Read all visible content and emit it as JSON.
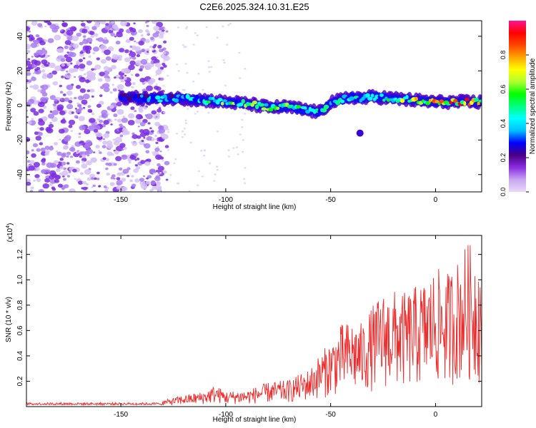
{
  "title": "C2E6.2025.324.10.31.E25",
  "chart_data": [
    {
      "type": "heatmap",
      "xlabel": "Height of straight line (km)",
      "ylabel": "Frequency (Hz)",
      "xlim": [
        -195,
        22
      ],
      "ylim": [
        -50,
        49
      ],
      "xticks": [
        -150,
        -100,
        -50,
        0
      ],
      "yticks": [
        -40,
        -20,
        0,
        20,
        40
      ],
      "colorbar": {
        "label": "Normalized spectral amplitude",
        "range": [
          0.0,
          1.0
        ],
        "ticks": [
          0.0,
          0.2,
          0.4,
          0.6,
          0.8
        ],
        "colors": [
          "#e8d8f8",
          "#c8a8f0",
          "#8a2be2",
          "#4b0082",
          "#0000ff",
          "#00bfff",
          "#00ffff",
          "#00ff7f",
          "#00ff00",
          "#adff2f",
          "#ffff00",
          "#ffa500",
          "#ff4500",
          "#ff0000",
          "#ff1493"
        ]
      },
      "ridge": {
        "x": [
          -150,
          -140,
          -130,
          -120,
          -110,
          -100,
          -90,
          -80,
          -70,
          -60,
          -55,
          -50,
          -45,
          -40,
          -35,
          -30,
          -20,
          -10,
          0,
          10,
          20
        ],
        "frequency": [
          5,
          4,
          4,
          4,
          3,
          2,
          1,
          -1,
          -1,
          -3,
          -4,
          2,
          3,
          5,
          4,
          5,
          4,
          3,
          2,
          2,
          2
        ],
        "amplitude": [
          0.3,
          0.35,
          0.4,
          0.45,
          0.5,
          0.55,
          0.6,
          0.6,
          0.55,
          0.45,
          0.4,
          0.5,
          0.5,
          0.45,
          0.5,
          0.55,
          0.6,
          0.7,
          0.8,
          0.85,
          0.8
        ]
      },
      "noise_region": [
        -195,
        -128
      ]
    },
    {
      "type": "line",
      "xlabel": "Height of straight line (km)",
      "ylabel": "SNR (10 * v/v)",
      "multiplier": "(x10^4)",
      "xlim": [
        -195,
        22
      ],
      "ylim": [
        0,
        1.35
      ],
      "xticks": [
        -150,
        -100,
        -50,
        0
      ],
      "yticks": [
        0.2,
        0.4,
        0.6,
        0.8,
        1.0,
        1.2
      ],
      "series": [
        {
          "color": "#ee2a2a",
          "envelope": {
            "x": [
              -195,
              -160,
              -140,
              -130,
              -120,
              -110,
              -105,
              -100,
              -90,
              -80,
              -70,
              -60,
              -55,
              -50,
              -45,
              -40,
              -35,
              -30,
              -25,
              -20,
              -15,
              -10,
              -5,
              0,
              5,
              10,
              15,
              20,
              22
            ],
            "upper": [
              0.03,
              0.03,
              0.04,
              0.05,
              0.09,
              0.12,
              0.17,
              0.12,
              0.13,
              0.19,
              0.21,
              0.3,
              0.42,
              0.52,
              0.65,
              0.68,
              0.66,
              0.8,
              0.9,
              0.92,
              0.9,
              0.95,
              1.0,
              1.1,
              1.05,
              1.15,
              1.3,
              1.25,
              1.1
            ]
          }
        }
      ]
    }
  ]
}
